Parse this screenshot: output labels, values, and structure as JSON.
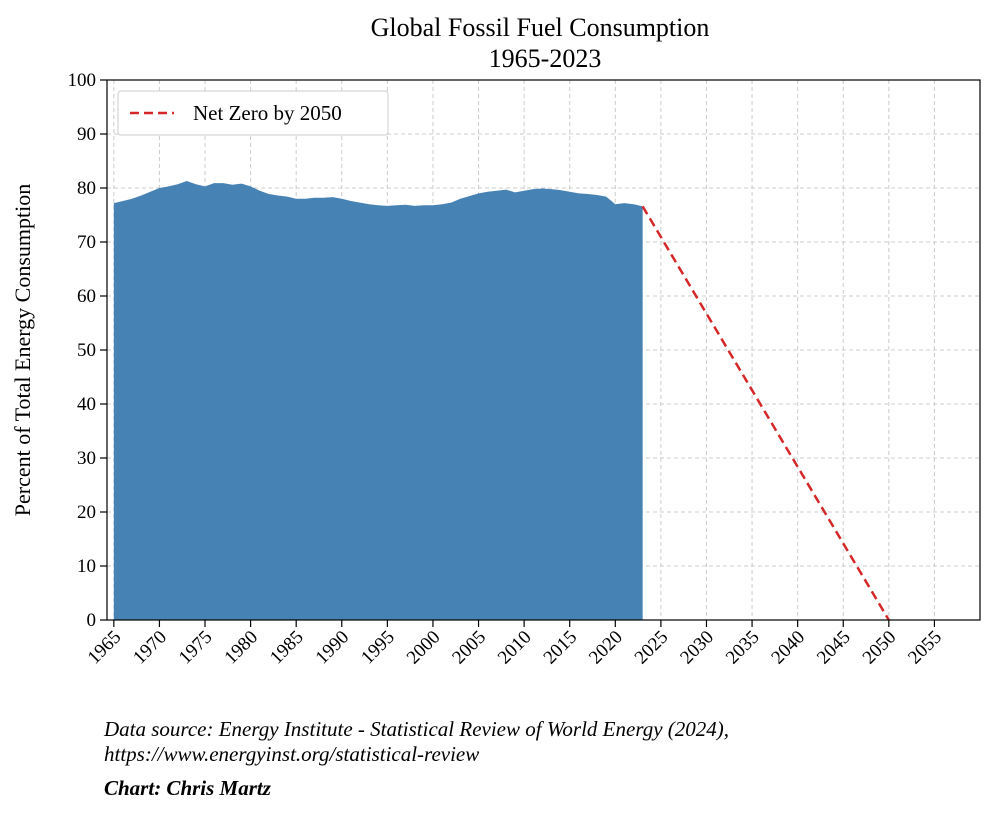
{
  "chart_data": {
    "type": "area",
    "title": "Global Fossil Fuel Consumption",
    "subtitle": "1965-2023",
    "y_label": "Percent of Total Energy Consumption",
    "color": "#4682b4",
    "x": [
      1965,
      1966,
      1967,
      1968,
      1969,
      1970,
      1971,
      1972,
      1973,
      1974,
      1975,
      1976,
      1977,
      1978,
      1979,
      1980,
      1981,
      1982,
      1983,
      1984,
      1985,
      1986,
      1987,
      1988,
      1989,
      1990,
      1991,
      1992,
      1993,
      1994,
      1995,
      1996,
      1997,
      1998,
      1999,
      2000,
      2001,
      2002,
      2003,
      2004,
      2005,
      2006,
      2007,
      2008,
      2009,
      2010,
      2011,
      2012,
      2013,
      2014,
      2015,
      2016,
      2017,
      2018,
      2019,
      2020,
      2021,
      2022,
      2023
    ],
    "values": [
      77.2,
      77.6,
      78.0,
      78.6,
      79.3,
      80.0,
      80.3,
      80.7,
      81.3,
      80.7,
      80.3,
      80.9,
      80.9,
      80.6,
      80.8,
      80.3,
      79.5,
      78.9,
      78.6,
      78.4,
      78.0,
      78.0,
      78.2,
      78.2,
      78.3,
      78.0,
      77.6,
      77.3,
      77.0,
      76.8,
      76.7,
      76.8,
      76.9,
      76.7,
      76.8,
      76.8,
      77.0,
      77.3,
      78.0,
      78.5,
      79.0,
      79.3,
      79.5,
      79.7,
      79.2,
      79.5,
      79.8,
      79.9,
      79.8,
      79.6,
      79.3,
      79.0,
      78.9,
      78.7,
      78.4,
      77.0,
      77.2,
      77.0,
      76.6
    ],
    "projection": {
      "name": "Net Zero by 2050",
      "color": "#d62728",
      "x": [
        2023,
        2050
      ],
      "values": [
        76.6,
        0
      ]
    },
    "xlim": [
      1964.25,
      2060
    ],
    "xticks": [
      1965,
      1970,
      1975,
      1980,
      1985,
      1990,
      1995,
      2000,
      2005,
      2010,
      2015,
      2020,
      2025,
      2030,
      2035,
      2040,
      2045,
      2050,
      2055
    ],
    "ylim": [
      0,
      100
    ],
    "yticks": [
      0,
      10,
      20,
      30,
      40,
      50,
      60,
      70,
      80,
      90,
      100
    ],
    "grid": true,
    "legend": "upper-left",
    "source_lines": [
      "Data source: Energy Institute - Statistical Review of World Energy (2024),",
      "https://www.energyinst.org/statistical-review"
    ],
    "credit": "Chart: Chris Martz"
  }
}
